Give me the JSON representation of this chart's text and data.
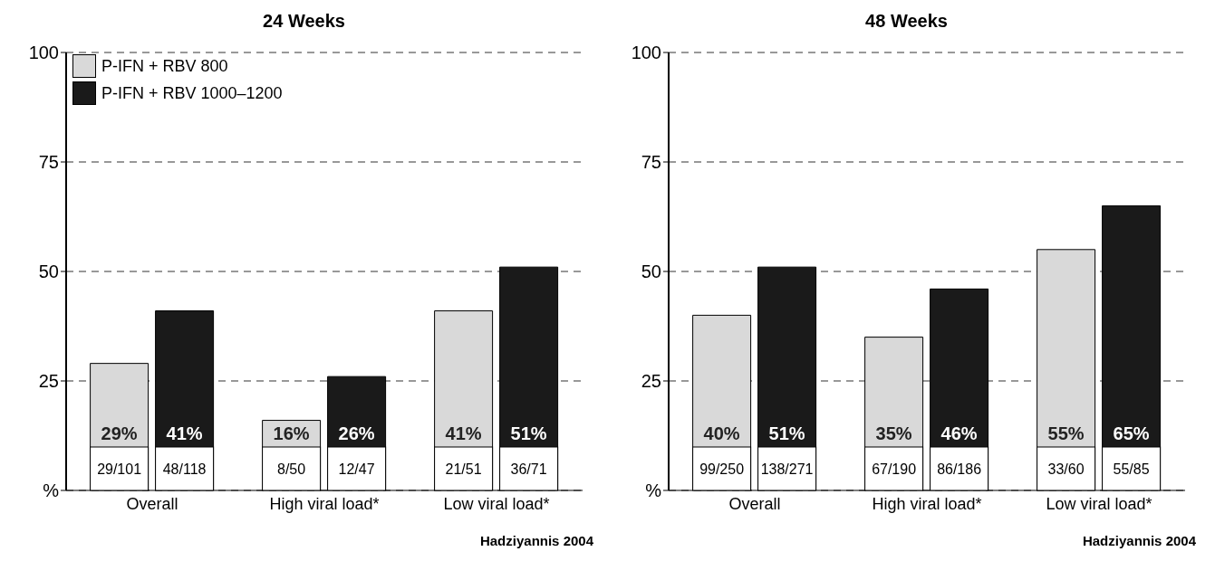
{
  "chart_data": [
    {
      "type": "bar",
      "title": "24 Weeks",
      "categories": [
        "Overall",
        "High viral load*",
        "Low viral load*"
      ],
      "series": [
        {
          "name": "P-IFN + RBV 800",
          "color": "#d9d9d9",
          "values": [
            29,
            16,
            41
          ],
          "value_labels": [
            "29%",
            "16%",
            "41%"
          ]
        },
        {
          "name": "P-IFN + RBV 1000–1200",
          "color": "#1a1a1a",
          "values": [
            41,
            26,
            51
          ],
          "value_labels": [
            "41%",
            "26%",
            "51%"
          ]
        }
      ],
      "ylim": [
        0,
        100
      ],
      "yticks": [
        {
          "value": 0,
          "label": "%"
        },
        25,
        50,
        75,
        100
      ],
      "grid": "y",
      "legend": "top left",
      "annotations": [
        "29/101",
        "48/118",
        "8/50",
        "12/47",
        "21/51",
        "36/71",
        "Hadziyannis 2004"
      ]
    },
    {
      "type": "bar",
      "title": "48 Weeks",
      "categories": [
        "Overall",
        "High viral load*",
        "Low viral load*"
      ],
      "series": [
        {
          "color": "#d9d9d9",
          "values": [
            40,
            35,
            55
          ],
          "value_labels": [
            "40%",
            "35%",
            "55%"
          ]
        },
        {
          "color": "#1a1a1a",
          "values": [
            51,
            46,
            65
          ],
          "value_labels": [
            "51%",
            "46%",
            "65%"
          ]
        }
      ],
      "ylim": [
        0,
        100
      ],
      "yticks": [
        {
          "value": 0,
          "label": "%"
        },
        25,
        50,
        75,
        100
      ],
      "grid": "y",
      "annotations": [
        "99/250",
        "138/271",
        "67/190",
        "86/186",
        "33/60",
        "55/85",
        "Hadziyannis 2004"
      ]
    }
  ]
}
